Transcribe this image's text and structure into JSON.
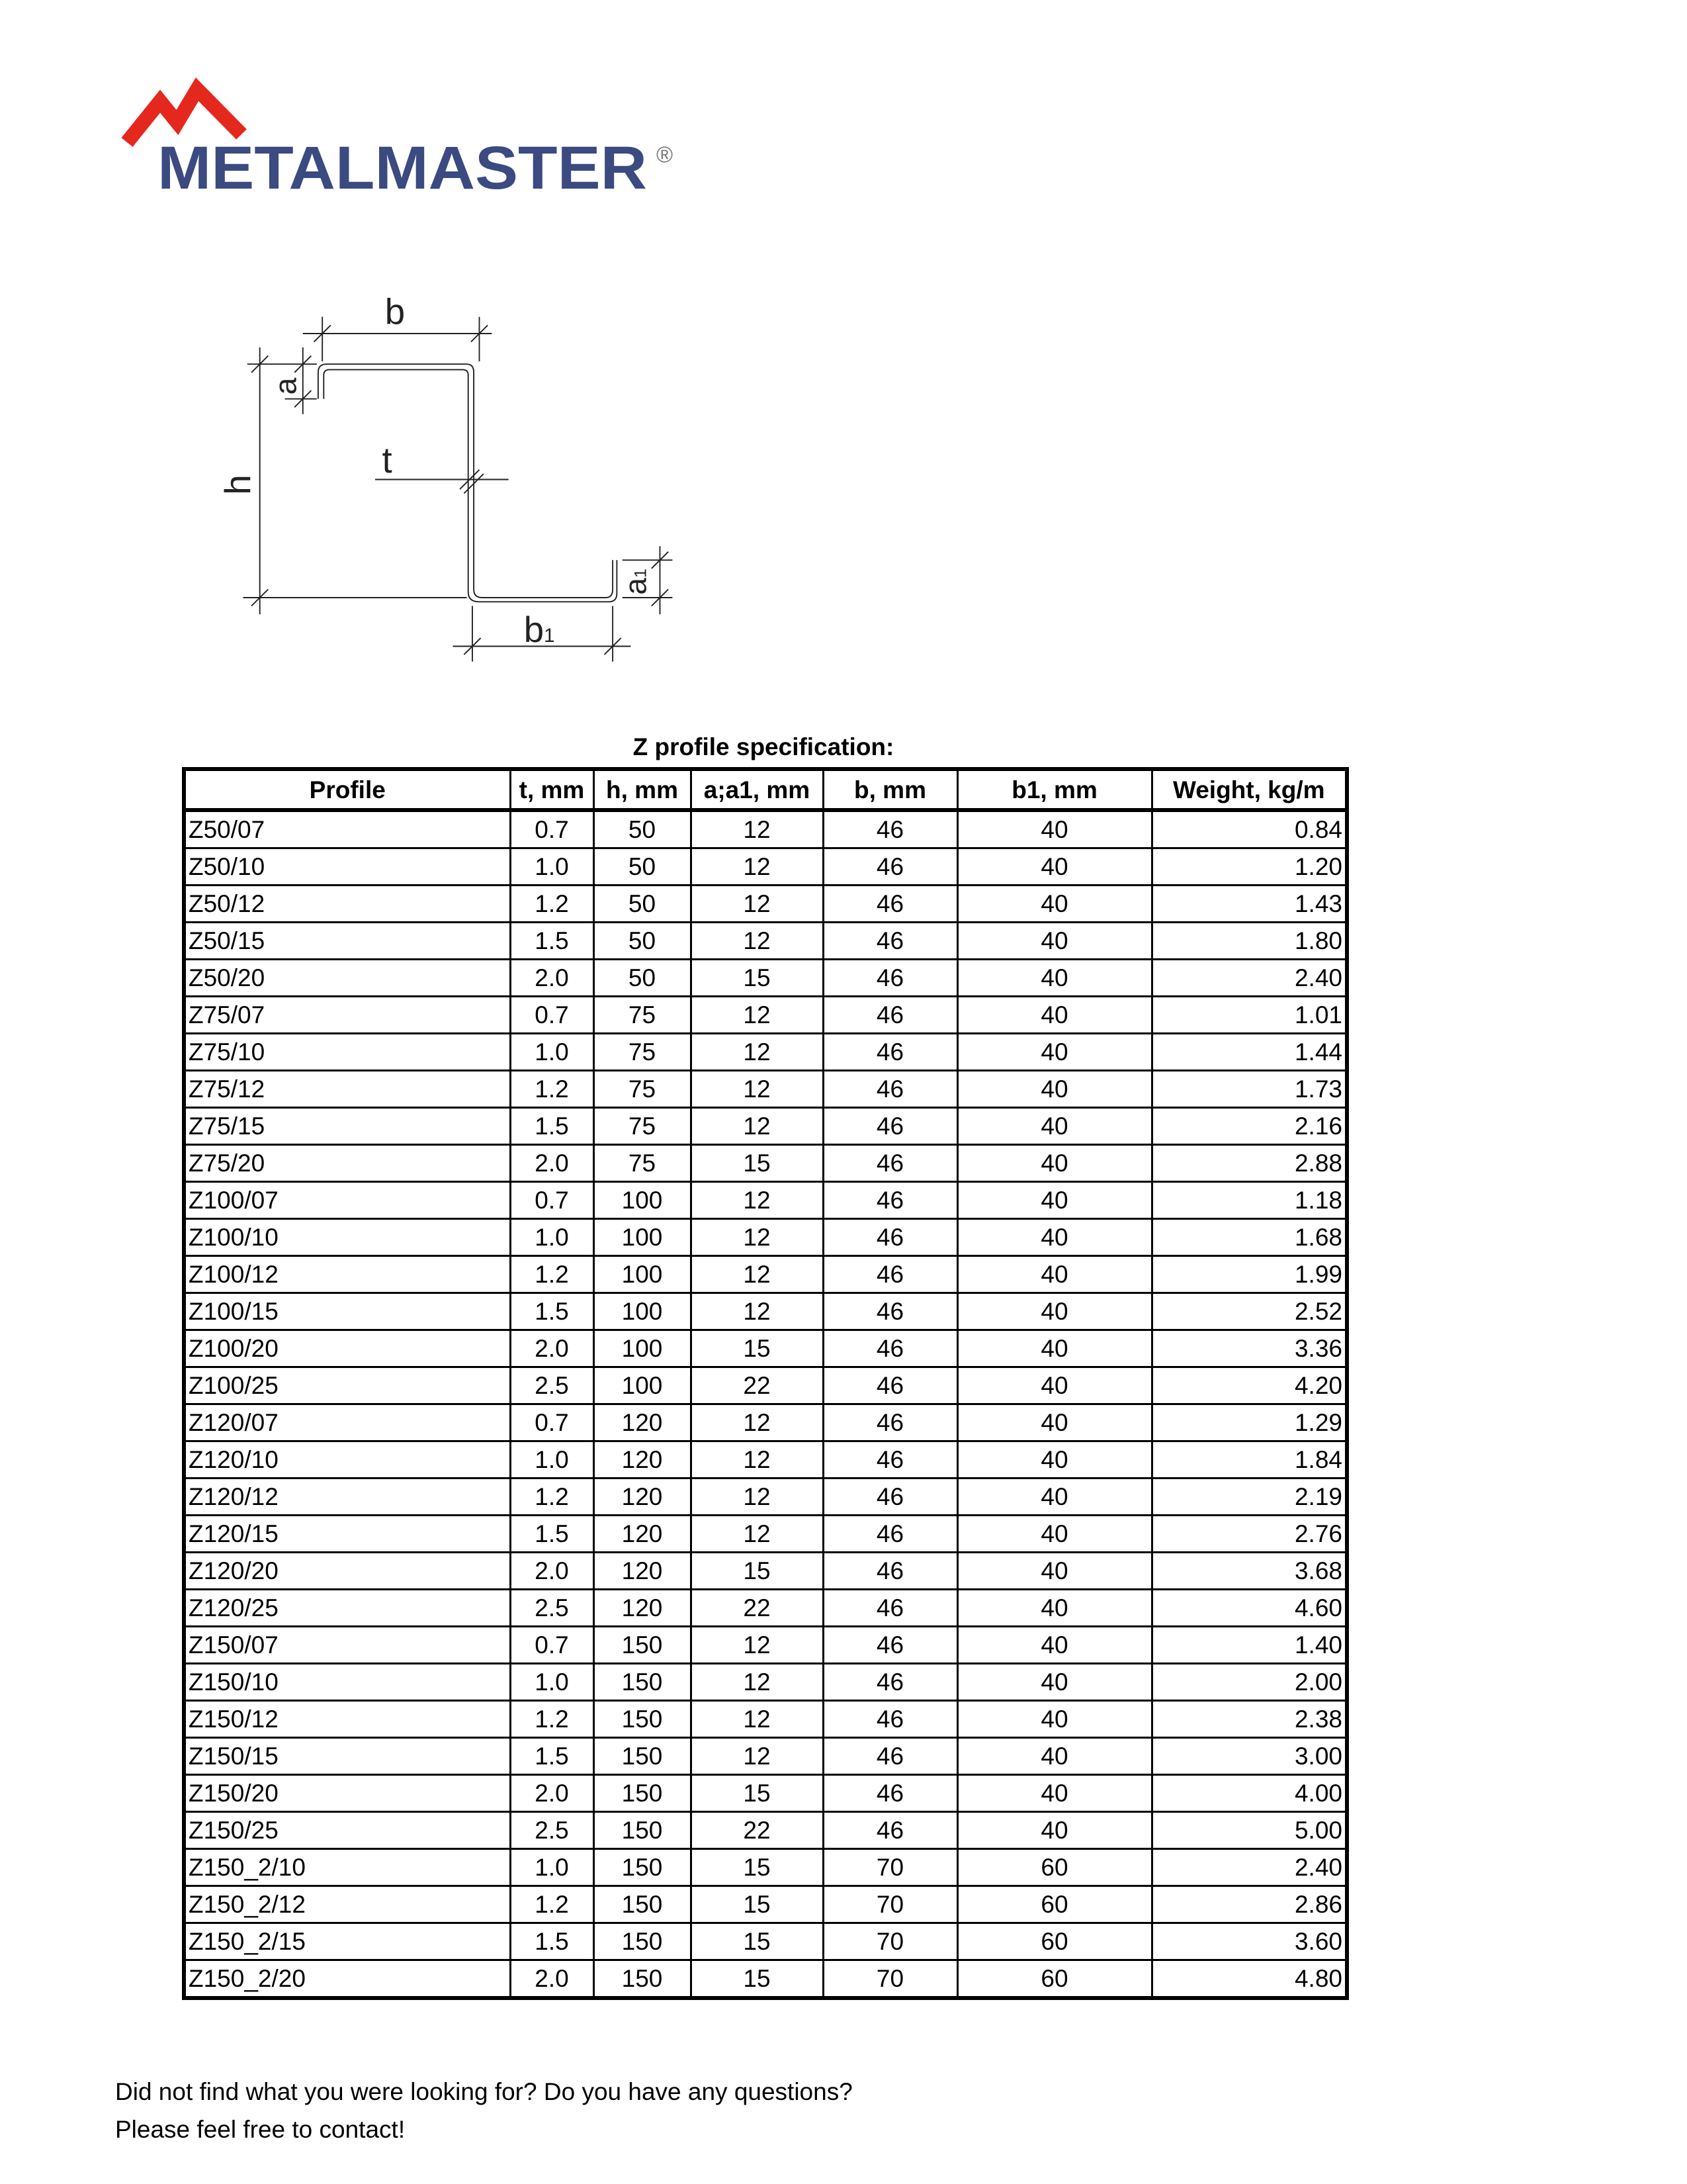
{
  "logo": {
    "text": "METALMASTER",
    "registered": "®",
    "colors": {
      "roof": "#e5281e",
      "text": "#3b4a80"
    }
  },
  "diagram": {
    "labels": {
      "b": "b",
      "a": "a",
      "h": "h",
      "t": "t",
      "b1": "b",
      "b1_sub": "1",
      "a1": "a",
      "a1_sub": "1"
    }
  },
  "table": {
    "title": "Z profile specification:",
    "headers": [
      "Profile",
      "t, mm",
      "h, mm",
      "a;a1, mm",
      "b, mm",
      "b1, mm",
      "Weight, kg/m"
    ],
    "rows": [
      [
        "Z50/07",
        "0.7",
        "50",
        "12",
        "46",
        "40",
        "0.84"
      ],
      [
        "Z50/10",
        "1.0",
        "50",
        "12",
        "46",
        "40",
        "1.20"
      ],
      [
        "Z50/12",
        "1.2",
        "50",
        "12",
        "46",
        "40",
        "1.43"
      ],
      [
        "Z50/15",
        "1.5",
        "50",
        "12",
        "46",
        "40",
        "1.80"
      ],
      [
        "Z50/20",
        "2.0",
        "50",
        "15",
        "46",
        "40",
        "2.40"
      ],
      [
        "Z75/07",
        "0.7",
        "75",
        "12",
        "46",
        "40",
        "1.01"
      ],
      [
        "Z75/10",
        "1.0",
        "75",
        "12",
        "46",
        "40",
        "1.44"
      ],
      [
        "Z75/12",
        "1.2",
        "75",
        "12",
        "46",
        "40",
        "1.73"
      ],
      [
        "Z75/15",
        "1.5",
        "75",
        "12",
        "46",
        "40",
        "2.16"
      ],
      [
        "Z75/20",
        "2.0",
        "75",
        "15",
        "46",
        "40",
        "2.88"
      ],
      [
        "Z100/07",
        "0.7",
        "100",
        "12",
        "46",
        "40",
        "1.18"
      ],
      [
        "Z100/10",
        "1.0",
        "100",
        "12",
        "46",
        "40",
        "1.68"
      ],
      [
        "Z100/12",
        "1.2",
        "100",
        "12",
        "46",
        "40",
        "1.99"
      ],
      [
        "Z100/15",
        "1.5",
        "100",
        "12",
        "46",
        "40",
        "2.52"
      ],
      [
        "Z100/20",
        "2.0",
        "100",
        "15",
        "46",
        "40",
        "3.36"
      ],
      [
        "Z100/25",
        "2.5",
        "100",
        "22",
        "46",
        "40",
        "4.20"
      ],
      [
        "Z120/07",
        "0.7",
        "120",
        "12",
        "46",
        "40",
        "1.29"
      ],
      [
        "Z120/10",
        "1.0",
        "120",
        "12",
        "46",
        "40",
        "1.84"
      ],
      [
        "Z120/12",
        "1.2",
        "120",
        "12",
        "46",
        "40",
        "2.19"
      ],
      [
        "Z120/15",
        "1.5",
        "120",
        "12",
        "46",
        "40",
        "2.76"
      ],
      [
        "Z120/20",
        "2.0",
        "120",
        "15",
        "46",
        "40",
        "3.68"
      ],
      [
        "Z120/25",
        "2.5",
        "120",
        "22",
        "46",
        "40",
        "4.60"
      ],
      [
        "Z150/07",
        "0.7",
        "150",
        "12",
        "46",
        "40",
        "1.40"
      ],
      [
        "Z150/10",
        "1.0",
        "150",
        "12",
        "46",
        "40",
        "2.00"
      ],
      [
        "Z150/12",
        "1.2",
        "150",
        "12",
        "46",
        "40",
        "2.38"
      ],
      [
        "Z150/15",
        "1.5",
        "150",
        "12",
        "46",
        "40",
        "3.00"
      ],
      [
        "Z150/20",
        "2.0",
        "150",
        "15",
        "46",
        "40",
        "4.00"
      ],
      [
        "Z150/25",
        "2.5",
        "150",
        "22",
        "46",
        "40",
        "5.00"
      ],
      [
        "Z150_2/10",
        "1.0",
        "150",
        "15",
        "70",
        "60",
        "2.40"
      ],
      [
        "Z150_2/12",
        "1.2",
        "150",
        "15",
        "70",
        "60",
        "2.86"
      ],
      [
        "Z150_2/15",
        "1.5",
        "150",
        "15",
        "70",
        "60",
        "3.60"
      ],
      [
        "Z150_2/20",
        "2.0",
        "150",
        "15",
        "70",
        "60",
        "4.80"
      ]
    ]
  },
  "footer": {
    "line1": "Did not find what you were looking for? Do you have any questions?",
    "line2": "Please feel free to contact!"
  }
}
